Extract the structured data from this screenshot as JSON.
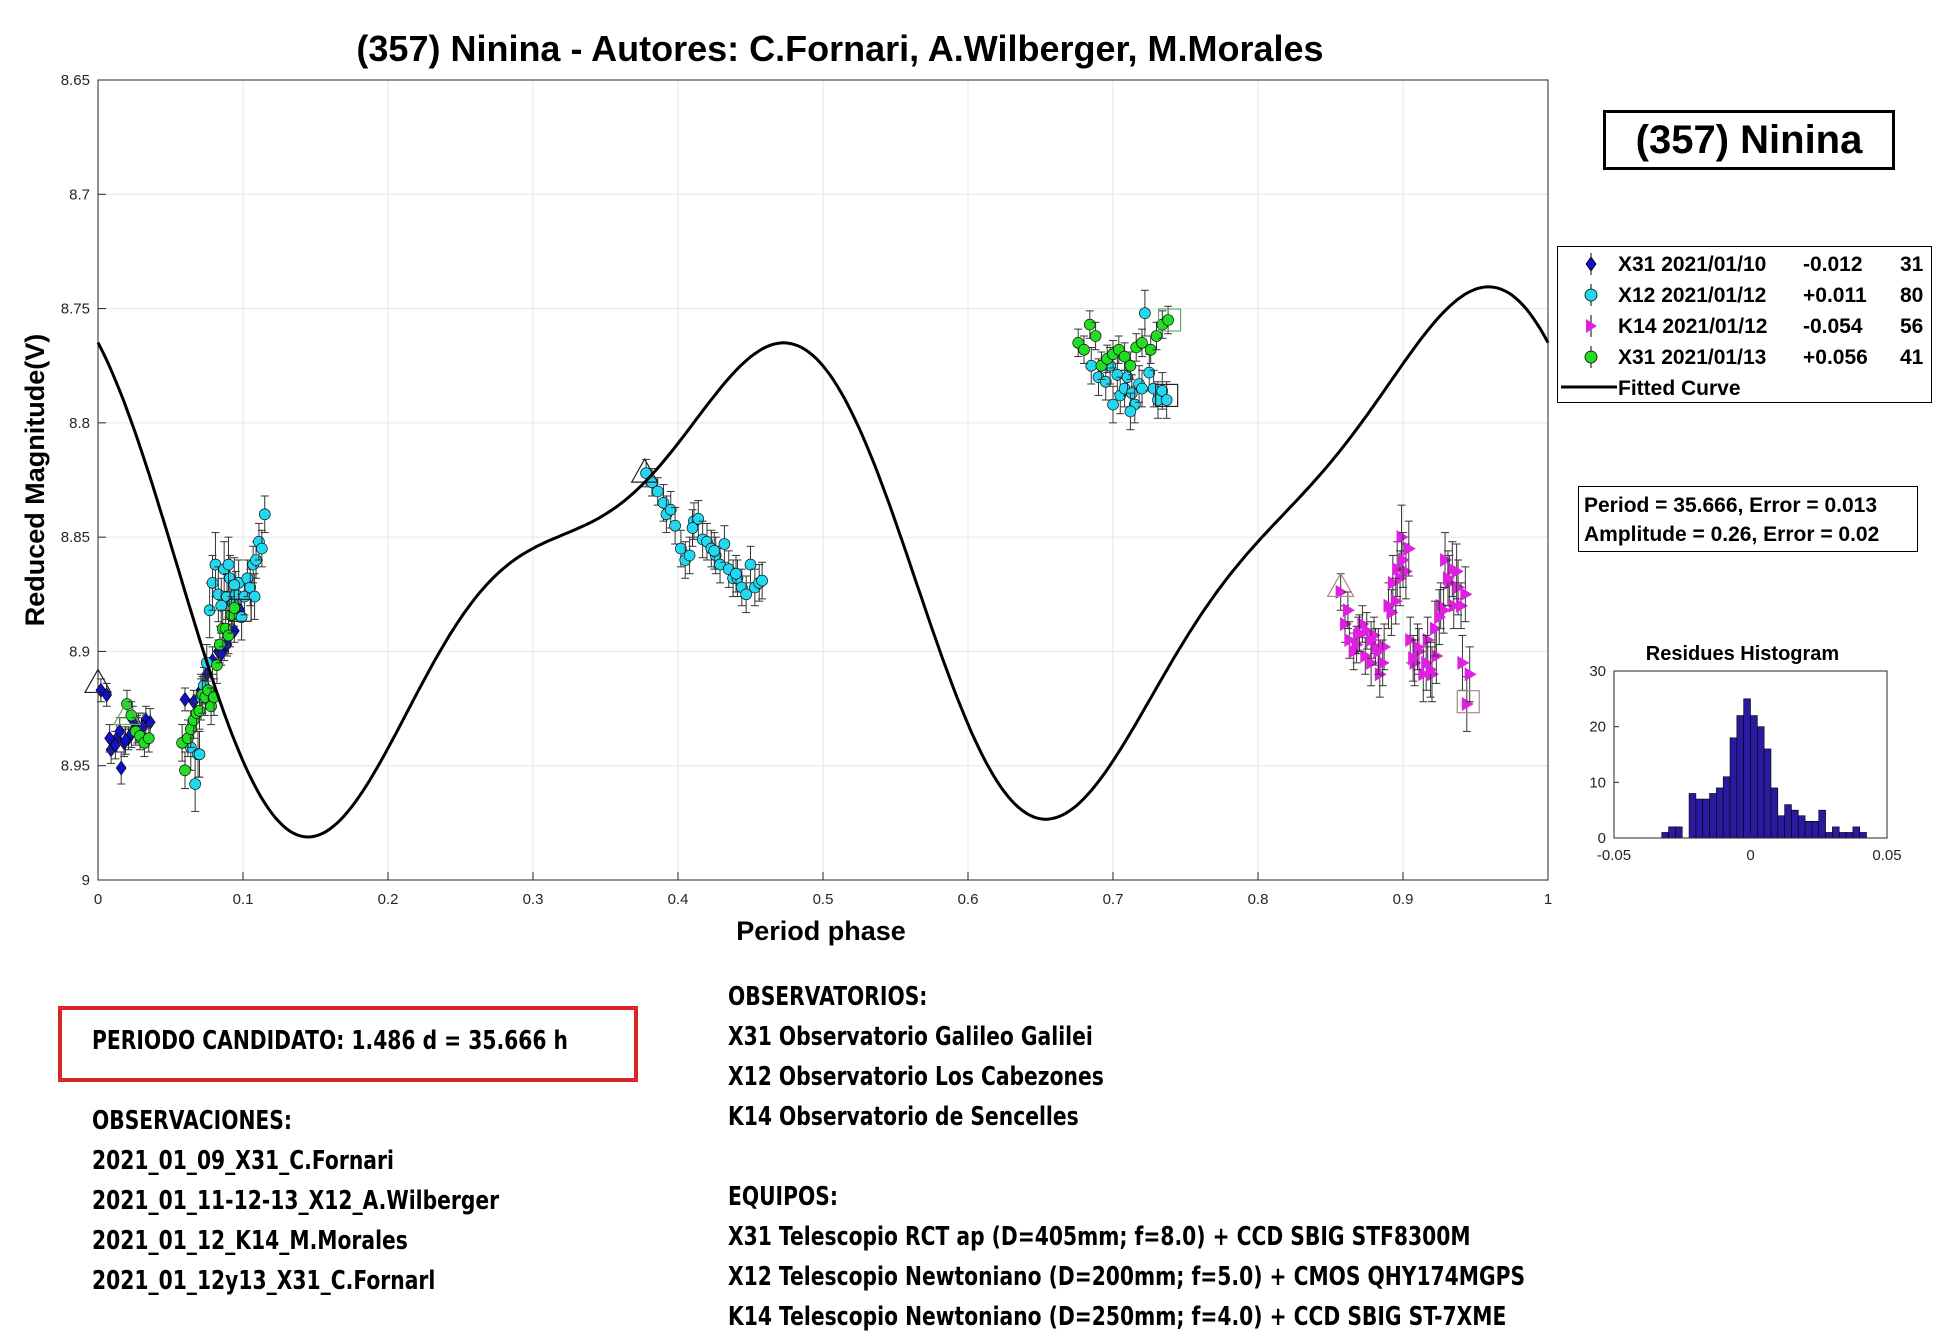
{
  "title": "(357) Ninina - Autores: C.Fornari, A.Wilberger, M.Morales",
  "name_box": "(357) Ninina",
  "fit_box": {
    "period_line": "Period =  35.666, Error = 0.013",
    "amplitude_line": "Amplitude = 0.26, Error = 0.02"
  },
  "legend": [
    {
      "label": "X31 2021/01/10",
      "offset": "-0.012",
      "count": "31",
      "marker": "diamond",
      "color": "#1010c8"
    },
    {
      "label": "X12 2021/01/12",
      "offset": "+0.011",
      "count": "80",
      "marker": "circle",
      "color": "#22d8f0"
    },
    {
      "label": "K14 2021/01/12",
      "offset": "-0.054",
      "count": "56",
      "marker": "triangle-right",
      "color": "#e020e0"
    },
    {
      "label": "X31 2021/01/13",
      "offset": "+0.056",
      "count": "41",
      "marker": "circle",
      "color": "#22dd22"
    },
    {
      "label": "Fitted Curve",
      "marker": "line",
      "color": "#000000"
    }
  ],
  "chart_data": [
    {
      "type": "scatter",
      "title": "",
      "xlabel": "Period phase",
      "ylabel": "Reduced Magnitude(V)",
      "xlim": [
        0,
        1
      ],
      "ylim": [
        9,
        8.65
      ],
      "y_reversed": true,
      "grid": true,
      "x_ticks": [
        "0",
        "0.1",
        "0.2",
        "0.3",
        "0.4",
        "0.5",
        "0.6",
        "0.7",
        "0.8",
        "0.9",
        "1"
      ],
      "y_ticks": [
        "8.65",
        "8.7",
        "8.75",
        "8.8",
        "8.85",
        "8.9",
        "8.95",
        "9"
      ],
      "fitted_curve": {
        "name": "Fitted Curve",
        "color": "#000000",
        "mean": 8.86,
        "harmonics": [
          {
            "n": 1,
            "a": -0.0056,
            "b": 0.0055
          },
          {
            "n": 2,
            "a": -0.06,
            "b": 0.078
          },
          {
            "n": 3,
            "a": 0.0005,
            "b": 0.01
          },
          {
            "n": 4,
            "a": -0.03,
            "b": 0.0
          }
        ]
      },
      "series": [
        {
          "name": "X31 2021/01/10",
          "marker": "diamond",
          "color": "#1010c8",
          "count": 31,
          "x": [
            0.002,
            0.006,
            0.009,
            0.013,
            0.016,
            0.018,
            0.021,
            0.024,
            0.027,
            0.03,
            0.033,
            0.036,
            0.06,
            0.066,
            0.075,
            0.079,
            0.083,
            0.087,
            0.091,
            0.094,
            0.098,
            0.008,
            0.012,
            0.015,
            0.019,
            0.023,
            0.028,
            0.071,
            0.085,
            0.089,
            0.031
          ],
          "y": [
            8.917,
            8.919,
            8.943,
            8.938,
            8.951,
            8.94,
            8.938,
            8.93,
            8.934,
            8.934,
            8.93,
            8.931,
            8.921,
            8.922,
            8.91,
            8.904,
            8.9,
            8.899,
            8.893,
            8.891,
            8.882,
            8.938,
            8.941,
            8.935,
            8.939,
            8.936,
            8.933,
            8.917,
            8.901,
            8.897,
            8.933
          ],
          "err": [
            0.005,
            0.005,
            0.006,
            0.006,
            0.007,
            0.006,
            0.005,
            0.006,
            0.006,
            0.005,
            0.006,
            0.006,
            0.005,
            0.005,
            0.006,
            0.006,
            0.005,
            0.005,
            0.005,
            0.005,
            0.005,
            0.006,
            0.006,
            0.006,
            0.006,
            0.006,
            0.006,
            0.005,
            0.005,
            0.005,
            0.006
          ]
        },
        {
          "name": "X12 2021/01/12",
          "marker": "circle",
          "color": "#22d8f0",
          "count": 80,
          "x": [
            0.064,
            0.067,
            0.069,
            0.071,
            0.073,
            0.075,
            0.077,
            0.079,
            0.081,
            0.083,
            0.085,
            0.087,
            0.089,
            0.091,
            0.093,
            0.095,
            0.097,
            0.099,
            0.101,
            0.103,
            0.105,
            0.107,
            0.109,
            0.111,
            0.113,
            0.115,
            0.07,
            0.09,
            0.094,
            0.108,
            0.378,
            0.382,
            0.386,
            0.39,
            0.392,
            0.395,
            0.398,
            0.402,
            0.405,
            0.408,
            0.411,
            0.414,
            0.417,
            0.42,
            0.423,
            0.426,
            0.429,
            0.432,
            0.435,
            0.438,
            0.441,
            0.444,
            0.447,
            0.45,
            0.453,
            0.456,
            0.458,
            0.41,
            0.425,
            0.44,
            0.685,
            0.69,
            0.695,
            0.7,
            0.703,
            0.705,
            0.708,
            0.71,
            0.713,
            0.715,
            0.718,
            0.72,
            0.722,
            0.725,
            0.728,
            0.731,
            0.734,
            0.737,
            0.712,
            0.698
          ],
          "y": [
            8.942,
            8.958,
            8.945,
            8.92,
            8.915,
            8.905,
            8.882,
            8.87,
            8.862,
            8.875,
            8.88,
            8.864,
            8.876,
            8.868,
            8.879,
            8.875,
            8.87,
            8.885,
            8.876,
            8.868,
            8.872,
            8.862,
            8.86,
            8.852,
            8.855,
            8.84,
            8.945,
            8.862,
            8.871,
            8.876,
            8.822,
            8.826,
            8.83,
            8.835,
            8.84,
            8.838,
            8.845,
            8.855,
            8.86,
            8.858,
            8.843,
            8.842,
            8.851,
            8.852,
            8.855,
            8.858,
            8.862,
            8.853,
            8.864,
            8.868,
            8.868,
            8.872,
            8.875,
            8.862,
            8.872,
            8.87,
            8.869,
            8.846,
            8.856,
            8.866,
            8.775,
            8.78,
            8.782,
            8.792,
            8.779,
            8.788,
            8.785,
            8.78,
            8.787,
            8.792,
            8.783,
            8.785,
            8.752,
            8.778,
            8.785,
            8.79,
            8.786,
            8.79,
            8.795,
            8.775
          ],
          "err": [
            0.01,
            0.012,
            0.01,
            0.01,
            0.008,
            0.008,
            0.012,
            0.012,
            0.014,
            0.012,
            0.012,
            0.012,
            0.01,
            0.01,
            0.01,
            0.01,
            0.01,
            0.01,
            0.008,
            0.008,
            0.008,
            0.008,
            0.008,
            0.008,
            0.008,
            0.008,
            0.01,
            0.012,
            0.012,
            0.01,
            0.006,
            0.006,
            0.006,
            0.008,
            0.008,
            0.008,
            0.008,
            0.008,
            0.008,
            0.008,
            0.008,
            0.008,
            0.008,
            0.008,
            0.008,
            0.008,
            0.008,
            0.008,
            0.008,
            0.008,
            0.008,
            0.008,
            0.008,
            0.008,
            0.008,
            0.008,
            0.008,
            0.008,
            0.008,
            0.008,
            0.008,
            0.008,
            0.008,
            0.008,
            0.008,
            0.008,
            0.008,
            0.008,
            0.008,
            0.008,
            0.008,
            0.008,
            0.01,
            0.008,
            0.008,
            0.008,
            0.008,
            0.008,
            0.008,
            0.008
          ]
        },
        {
          "name": "K14 2021/01/12",
          "marker": "triangle-right",
          "color": "#e020e0",
          "count": 56,
          "x": [
            0.857,
            0.86,
            0.863,
            0.866,
            0.869,
            0.872,
            0.875,
            0.878,
            0.881,
            0.884,
            0.887,
            0.89,
            0.893,
            0.896,
            0.899,
            0.902,
            0.905,
            0.908,
            0.911,
            0.914,
            0.917,
            0.92,
            0.923,
            0.926,
            0.929,
            0.932,
            0.935,
            0.938,
            0.941,
            0.944,
            0.862,
            0.868,
            0.874,
            0.88,
            0.886,
            0.892,
            0.898,
            0.904,
            0.91,
            0.916,
            0.922,
            0.928,
            0.934,
            0.94,
            0.946,
            0.87,
            0.883,
            0.895,
            0.907,
            0.919,
            0.931,
            0.943,
            0.878,
            0.9,
            0.925,
            0.937
          ],
          "y": [
            8.874,
            8.888,
            8.895,
            8.9,
            8.893,
            8.888,
            8.891,
            8.905,
            8.898,
            8.91,
            8.898,
            8.88,
            8.87,
            8.864,
            8.85,
            8.865,
            8.895,
            8.905,
            8.9,
            8.91,
            8.895,
            8.91,
            8.902,
            8.88,
            8.86,
            8.87,
            8.88,
            8.872,
            8.905,
            8.923,
            8.882,
            8.897,
            8.902,
            8.893,
            8.905,
            8.883,
            8.868,
            8.855,
            8.898,
            8.905,
            8.89,
            8.882,
            8.864,
            8.88,
            8.91,
            8.892,
            8.9,
            8.878,
            8.903,
            8.908,
            8.868,
            8.875,
            8.895,
            8.86,
            8.885,
            8.865
          ],
          "err": [
            0.008,
            0.008,
            0.008,
            0.008,
            0.008,
            0.008,
            0.008,
            0.01,
            0.008,
            0.01,
            0.01,
            0.01,
            0.012,
            0.012,
            0.014,
            0.012,
            0.01,
            0.01,
            0.01,
            0.012,
            0.01,
            0.012,
            0.012,
            0.01,
            0.012,
            0.012,
            0.01,
            0.012,
            0.012,
            0.012,
            0.008,
            0.008,
            0.008,
            0.008,
            0.01,
            0.01,
            0.012,
            0.012,
            0.01,
            0.012,
            0.012,
            0.01,
            0.012,
            0.01,
            0.012,
            0.008,
            0.01,
            0.01,
            0.01,
            0.012,
            0.012,
            0.012,
            0.008,
            0.012,
            0.012,
            0.012
          ]
        },
        {
          "name": "X31 2021/01/13",
          "marker": "circle",
          "color": "#22dd22",
          "count": 41,
          "x": [
            0.02,
            0.023,
            0.026,
            0.029,
            0.032,
            0.035,
            0.058,
            0.06,
            0.062,
            0.064,
            0.066,
            0.068,
            0.07,
            0.072,
            0.074,
            0.076,
            0.078,
            0.08,
            0.082,
            0.084,
            0.086,
            0.088,
            0.09,
            0.092,
            0.094,
            0.676,
            0.68,
            0.684,
            0.688,
            0.692,
            0.696,
            0.7,
            0.704,
            0.708,
            0.712,
            0.716,
            0.72,
            0.726,
            0.73,
            0.734,
            0.738
          ],
          "y": [
            8.923,
            8.928,
            8.935,
            8.937,
            8.94,
            8.938,
            8.94,
            8.952,
            8.938,
            8.934,
            8.93,
            8.927,
            8.926,
            8.919,
            8.92,
            8.917,
            8.924,
            8.92,
            8.906,
            8.897,
            8.89,
            8.89,
            8.893,
            8.884,
            8.881,
            8.765,
            8.768,
            8.757,
            8.762,
            8.775,
            8.772,
            8.77,
            8.768,
            8.771,
            8.775,
            8.767,
            8.765,
            8.768,
            8.762,
            8.757,
            8.755
          ],
          "err": [
            0.006,
            0.006,
            0.006,
            0.006,
            0.006,
            0.006,
            0.008,
            0.008,
            0.008,
            0.008,
            0.008,
            0.008,
            0.008,
            0.008,
            0.008,
            0.008,
            0.008,
            0.008,
            0.008,
            0.008,
            0.008,
            0.008,
            0.008,
            0.008,
            0.008,
            0.006,
            0.006,
            0.006,
            0.006,
            0.006,
            0.006,
            0.006,
            0.006,
            0.006,
            0.006,
            0.006,
            0.006,
            0.006,
            0.006,
            0.006,
            0.006
          ]
        }
      ],
      "endpoint_markers": [
        {
          "series": "X31 2021/01/10",
          "shape": "triangle",
          "x": 0.0,
          "y": 8.914
        },
        {
          "series": "X31 2021/01/10",
          "shape": "square",
          "x": 0.098,
          "y": 8.882
        },
        {
          "series": "X12 2021/01/12",
          "shape": "triangle",
          "x": 0.377,
          "y": 8.822
        },
        {
          "series": "X12 2021/01/12",
          "shape": "square",
          "x": 0.737,
          "y": 8.788
        },
        {
          "series": "K14 2021/01/12",
          "shape": "triangle",
          "x": 0.857,
          "y": 8.872
        },
        {
          "series": "K14 2021/01/12",
          "shape": "square",
          "x": 0.945,
          "y": 8.922
        },
        {
          "series": "X31 2021/01/13",
          "shape": "triangle",
          "x": 0.02,
          "y": 8.928
        },
        {
          "series": "X31 2021/01/13",
          "shape": "square",
          "x": 0.739,
          "y": 8.755
        }
      ]
    },
    {
      "type": "bar",
      "title": "Residues Histogram",
      "xlim": [
        -0.05,
        0.05
      ],
      "ylim": [
        0,
        30
      ],
      "x_ticks": [
        "-0.05",
        "0",
        "0.05"
      ],
      "y_ticks": [
        "0",
        "10",
        "20",
        "30"
      ],
      "bar_color": "#2a1aa0",
      "bin_width": 0.0025,
      "bin_starts": [
        -0.0325,
        -0.03,
        -0.0275,
        -0.025,
        -0.0225,
        -0.02,
        -0.0175,
        -0.015,
        -0.0125,
        -0.01,
        -0.0075,
        -0.005,
        -0.0025,
        0,
        0.0025,
        0.005,
        0.0075,
        0.01,
        0.0125,
        0.015,
        0.0175,
        0.02,
        0.0225,
        0.025,
        0.0275,
        0.03,
        0.0325,
        0.035,
        0.0375,
        0.04
      ],
      "values": [
        1,
        2,
        2,
        0,
        8,
        7,
        7,
        8,
        9,
        11,
        18,
        22,
        25,
        22,
        20,
        16,
        9,
        4,
        6,
        5,
        4,
        3,
        3,
        5,
        1,
        2,
        1,
        1,
        2,
        1
      ]
    }
  ],
  "text_blocks": {
    "periodo": "PERIODO CANDIDATO: 1.486 d = 35.666 h",
    "observaciones_title": "OBSERVACIONES:",
    "observaciones": [
      "2021_01_09_X31_C.Fornari",
      "2021_01_11-12-13_X12_A.Wilberger",
      "2021_01_12_K14_M.Morales",
      "2021_01_12y13_X31_C.Fornarl"
    ],
    "observatorios_title": "OBSERVATORIOS:",
    "observatorios": [
      "X31 Observatorio Galileo Galilei",
      "X12 Observatorio Los Cabezones",
      "K14 Observatorio de Sencelles"
    ],
    "equipos_title": "EQUIPOS:",
    "equipos": [
      "X31 Telescopio RCT ap (D=405mm; f=8.0) + CCD SBIG STF8300M",
      "X12 Telescopio Newtoniano (D=200mm; f=5.0) + CMOS QHY174MGPS",
      "K14 Telescopio Newtoniano (D=250mm; f=4.0) + CCD SBIG ST-7XME"
    ]
  }
}
